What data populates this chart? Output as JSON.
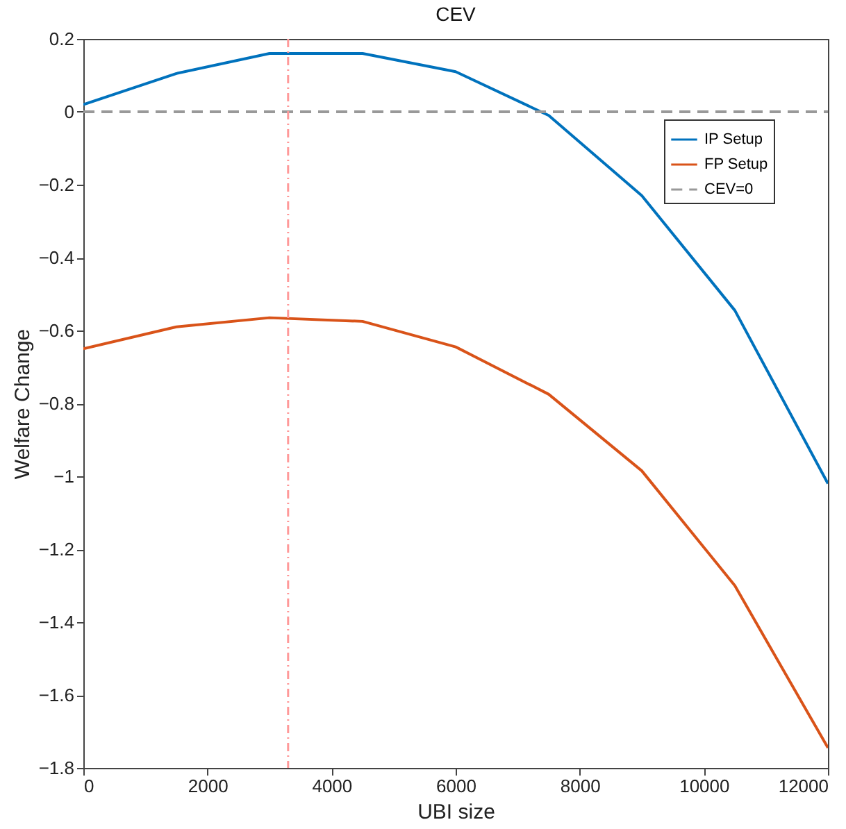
{
  "chart_data": {
    "type": "line",
    "title": "CEV",
    "xlabel": "UBI size",
    "ylabel": "Welfare Change",
    "x": [
      0,
      1500,
      3000,
      4500,
      6000,
      7500,
      9000,
      10500,
      12000
    ],
    "series": [
      {
        "name": "IP Setup",
        "color": "#0072bd",
        "values": [
          0.02,
          0.105,
          0.16,
          0.16,
          0.11,
          -0.01,
          -0.23,
          -0.545,
          -1.02
        ]
      },
      {
        "name": "FP Setup",
        "color": "#d95319",
        "values": [
          -0.65,
          -0.59,
          -0.565,
          -0.575,
          -0.645,
          -0.775,
          -0.985,
          -1.3,
          -1.745
        ]
      },
      {
        "name": "CEV=0",
        "color": "#999999",
        "line_style": "dashed",
        "x": [
          0,
          12000
        ],
        "values": [
          0,
          0
        ]
      }
    ],
    "ref_lines": [
      {
        "axis": "x",
        "value": 3300,
        "color": "#ff9999",
        "line_style": "dashed"
      }
    ],
    "xlim": [
      0,
      12000
    ],
    "xticks": [
      0,
      2000,
      4000,
      6000,
      8000,
      10000,
      12000
    ],
    "ylim": [
      -1.8,
      0.2
    ],
    "yticks": [
      -1.8,
      -1.6,
      -1.4,
      -1.2,
      -1,
      -0.8,
      -0.6,
      -0.4,
      -0.2,
      0,
      0.2
    ],
    "grid": false,
    "legend": "top right"
  }
}
